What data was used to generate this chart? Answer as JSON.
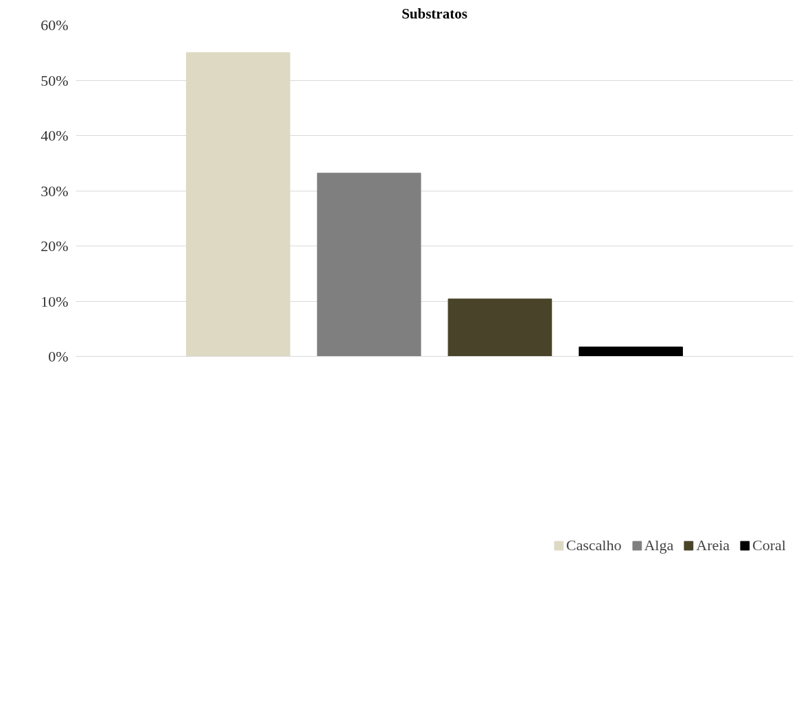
{
  "chart_data": {
    "type": "bar",
    "title": "Substratos",
    "categories": [
      null
    ],
    "series": [
      {
        "name": "Cascalho",
        "color": "#ddd9c3",
        "values": [
          55.0
        ]
      },
      {
        "name": "Alga",
        "color": "#7f7f7f",
        "values": [
          33.2
        ]
      },
      {
        "name": "Areia",
        "color": "#494429",
        "values": [
          10.4
        ]
      },
      {
        "name": "Coral",
        "color": "#000000",
        "values": [
          1.7
        ]
      }
    ],
    "ylim": [
      0,
      60
    ],
    "yticks": [
      {
        "value": 0,
        "label": "0%"
      },
      {
        "value": 10,
        "label": "10%"
      },
      {
        "value": 20,
        "label": "20%"
      },
      {
        "value": 30,
        "label": "30%"
      },
      {
        "value": 40,
        "label": "40%"
      },
      {
        "value": 50,
        "label": "50%"
      },
      {
        "value": 60,
        "label": "60%"
      }
    ],
    "grid": "y",
    "legend": "bottom"
  }
}
